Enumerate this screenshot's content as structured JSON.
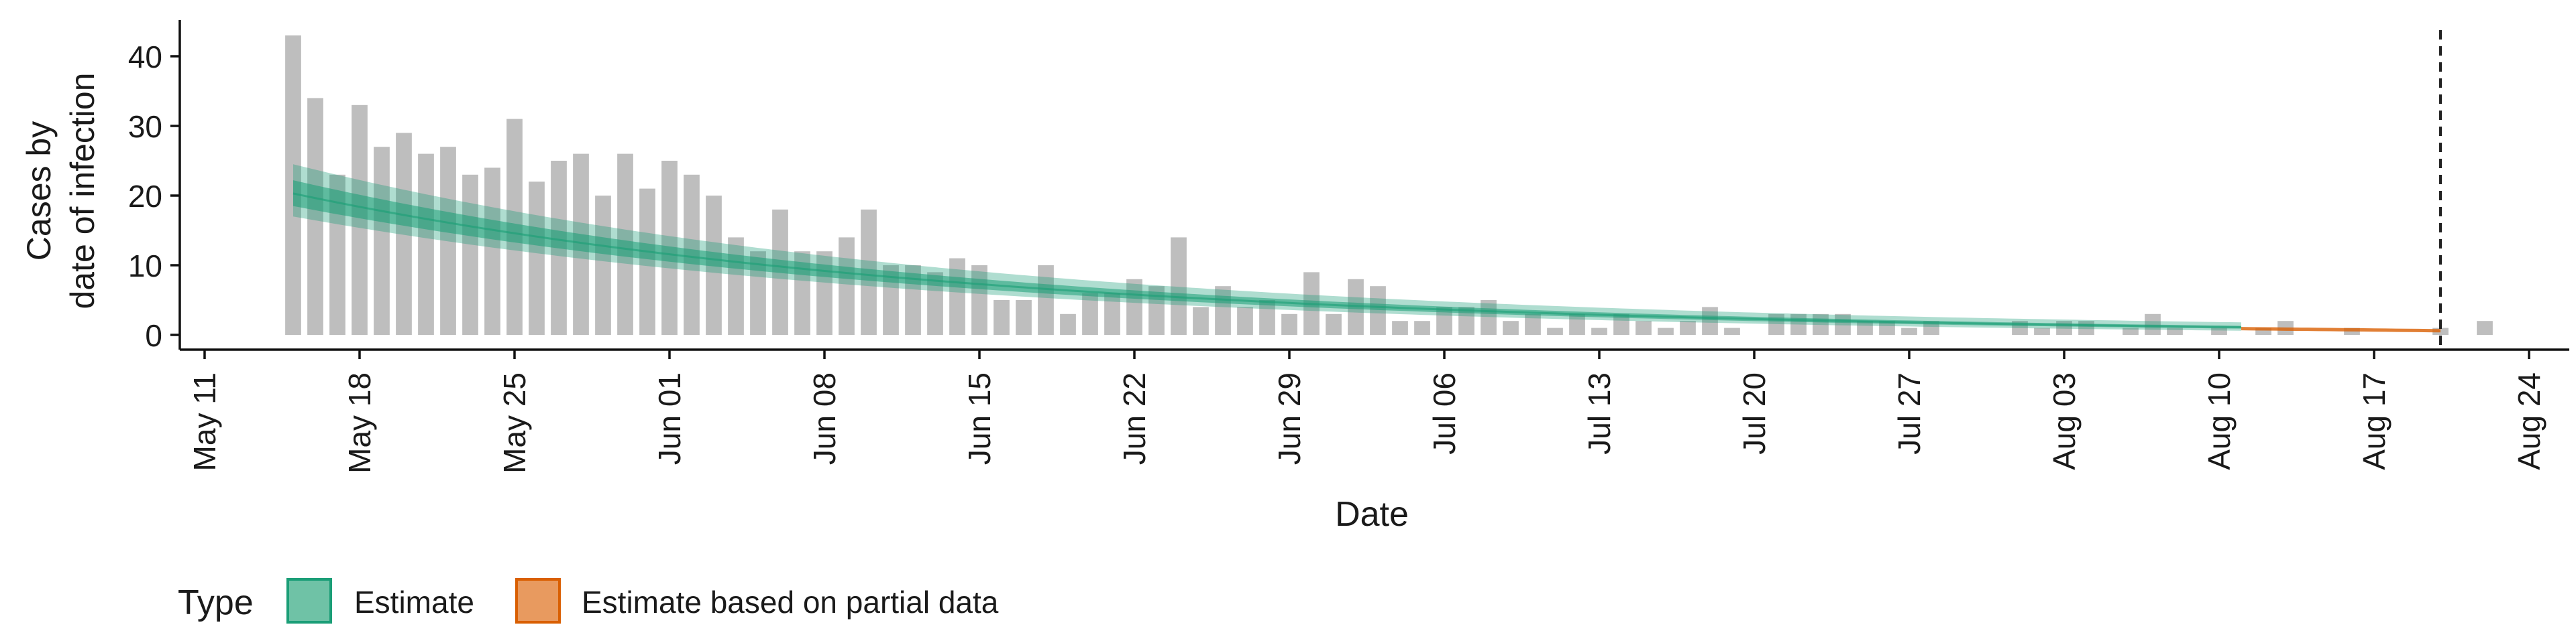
{
  "chart_data": {
    "type": "bar",
    "xlabel": "Date",
    "ylabel_lines": [
      "Cases by",
      "date of infection"
    ],
    "yticks": [
      0,
      10,
      20,
      30,
      40
    ],
    "ylim": [
      0,
      45
    ],
    "xticks": [
      "May 11",
      "May 18",
      "May 25",
      "Jun 01",
      "Jun 08",
      "Jun 15",
      "Jun 22",
      "Jun 29",
      "Jul 06",
      "Jul 13",
      "Jul 20",
      "Jul 27",
      "Aug 03",
      "Aug 10",
      "Aug 17",
      "Aug 24"
    ],
    "x_start": "May 11",
    "bar_start_day": 4,
    "vline_day": 101,
    "bars": [
      43,
      34,
      23,
      33,
      27,
      29,
      26,
      27,
      23,
      24,
      31,
      22,
      25,
      26,
      20,
      26,
      21,
      25,
      23,
      20,
      14,
      12,
      18,
      12,
      12,
      14,
      18,
      10,
      10,
      9,
      11,
      10,
      5,
      5,
      10,
      3,
      6,
      6,
      8,
      7,
      14,
      4,
      7,
      4,
      5,
      3,
      9,
      3,
      8,
      7,
      2,
      2,
      4,
      4,
      5,
      2,
      3,
      1,
      3,
      1,
      3,
      2,
      1,
      2,
      4,
      1,
      0,
      3,
      3,
      3,
      3,
      2,
      2,
      1,
      2,
      0,
      0,
      0,
      2,
      1,
      2,
      2,
      0,
      1,
      3,
      1,
      0,
      1,
      0,
      1,
      2,
      0,
      0,
      1,
      0,
      0,
      0,
      1,
      0,
      2
    ],
    "estimate": {
      "day_start": 4,
      "day_end": 92,
      "median": [
        20.3,
        1.1
      ],
      "inner": [
        [
          18.5,
          22.2
        ],
        [
          0.9,
          1.3
        ]
      ],
      "outer": [
        [
          17.0,
          24.5
        ],
        [
          0.6,
          1.8
        ]
      ],
      "decay": 0.033
    },
    "partial_estimate": {
      "day_start": 92,
      "day_end": 101,
      "median": [
        0.9,
        0.6
      ]
    },
    "colors": {
      "bars": "#bebebe",
      "estimate": "#1b9e77",
      "partial": "#d95f02",
      "legend_estimate": "#6fc2a6",
      "legend_partial": "#e89a5f"
    },
    "legend": {
      "title": "Type",
      "items": [
        "Estimate",
        "Estimate based on partial data"
      ],
      "position": "bottom"
    }
  }
}
